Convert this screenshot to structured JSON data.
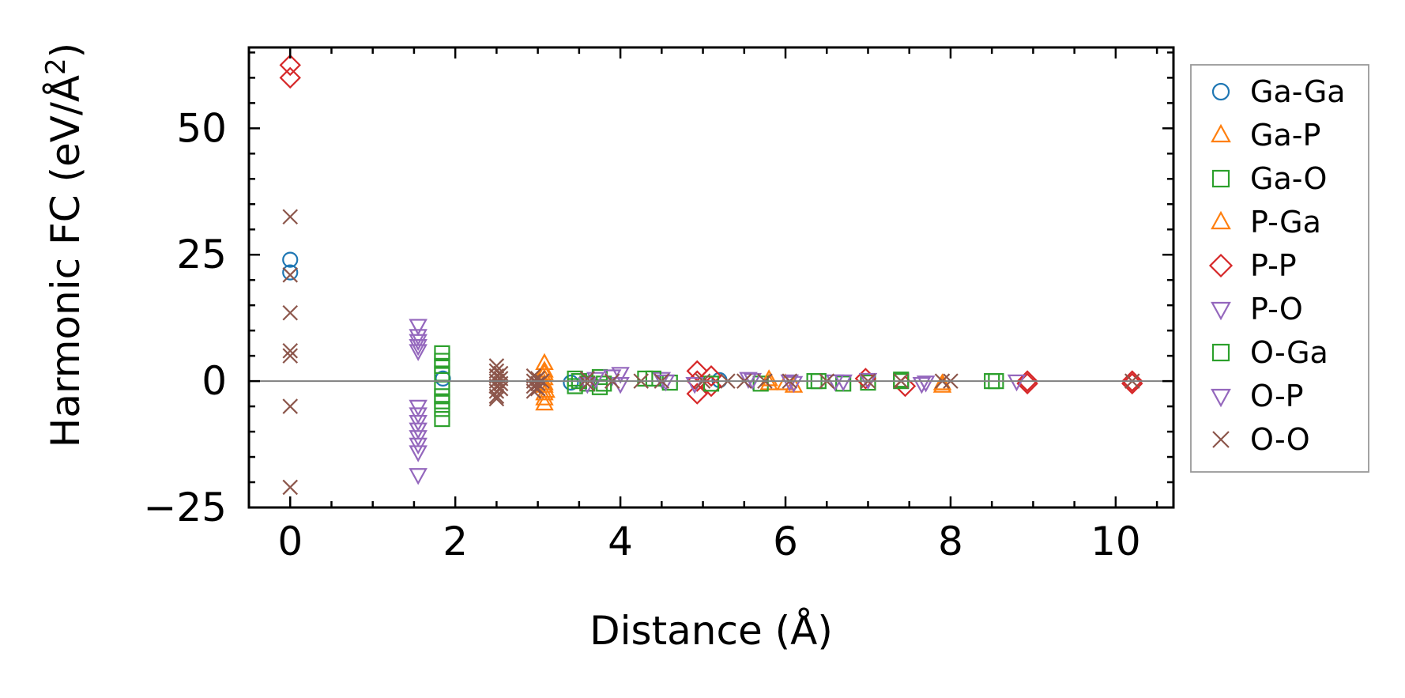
{
  "chart_data": {
    "type": "scatter",
    "title": "",
    "xlabel": "Distance (Å)",
    "ylabel_main": "Harmonic FC (eV/Å",
    "ylabel_sup": "2",
    "ylabel_tail": ")",
    "xlim": [
      -0.5,
      10.7
    ],
    "ylim": [
      -25,
      66
    ],
    "xticks": [
      0,
      2,
      4,
      6,
      8,
      10
    ],
    "xtick_labels": [
      "0",
      "2",
      "4",
      "6",
      "8",
      "10"
    ],
    "yticks": [
      -25,
      0,
      25,
      50
    ],
    "ytick_labels": [
      "−25",
      "0",
      "25",
      "50"
    ],
    "grid": false,
    "zero_line": true,
    "legend_position": "outside-right",
    "series": [
      {
        "name": "Ga-Ga",
        "marker": "circle",
        "color": "#1f77b4",
        "x": [
          0,
          0,
          1.85,
          3.4,
          5.2
        ],
        "y": [
          24,
          21.5,
          0.5,
          -0.3,
          0.2
        ]
      },
      {
        "name": "Ga-P",
        "marker": "triangle-up",
        "color": "#ff7f0e",
        "x": [
          3.08,
          3.08,
          3.08,
          3.08,
          3.08,
          3.08,
          3.08,
          5.8,
          6.1,
          7.9
        ],
        "y": [
          3.5,
          2,
          0.5,
          -1,
          -2.5,
          -3.5,
          -4.5,
          -0.5,
          -1,
          -1
        ]
      },
      {
        "name": "Ga-O",
        "marker": "square",
        "color": "#2ca02c",
        "x": [
          1.84,
          1.84,
          1.84,
          1.84,
          1.84,
          1.84,
          1.84,
          1.84,
          1.84,
          3.45,
          3.45,
          3.6,
          3.75,
          3.75,
          4.3,
          4.6,
          5.7,
          6.35,
          6.7,
          7.0,
          7.4,
          8.5
        ],
        "y": [
          5.5,
          4,
          3,
          1.5,
          -1.5,
          -3,
          -4,
          -5.5,
          -7.5,
          0.5,
          -1,
          -0.5,
          0.8,
          -1.2,
          0.5,
          -0.3,
          -0.5,
          0,
          -0.5,
          -0.3,
          0.3,
          0
        ],
        "filled_like": true
      },
      {
        "name": "P-Ga",
        "marker": "triangle-up",
        "color": "#ff7f0e",
        "x": [
          3.08,
          3.08,
          3.1,
          5.8,
          6.0,
          7.9
        ],
        "y": [
          1.5,
          -0.5,
          -2,
          0.3,
          -0.5,
          -0.5
        ]
      },
      {
        "name": "P-P",
        "marker": "diamond",
        "color": "#d62728",
        "x": [
          0,
          0,
          4.93,
          4.93,
          4.93,
          5.1,
          5.1,
          6.97,
          7.45,
          8.93,
          8.93,
          10.2,
          10.2
        ],
        "y": [
          62.5,
          60,
          2,
          0,
          -2.5,
          1,
          -1,
          0.5,
          -1,
          0,
          -0.5,
          0,
          -0.5
        ]
      },
      {
        "name": "P-O",
        "marker": "triangle-down",
        "color": "#9467bd",
        "x": [
          1.55,
          1.55,
          1.55,
          1.55,
          1.55,
          1.55,
          1.55,
          1.55,
          1.55,
          1.55,
          1.55,
          1.55,
          1.55,
          3.6,
          3.9,
          4.0,
          4.5,
          5.55,
          6.05,
          6.7,
          7.65,
          8.8
        ],
        "y": [
          11,
          9,
          8,
          7,
          6,
          -5,
          -6.5,
          -8,
          -9.5,
          -11,
          -12.5,
          -14,
          -18.5,
          -0.5,
          1,
          1.5,
          0.5,
          0.5,
          0,
          0,
          -0.5,
          0
        ]
      },
      {
        "name": "O-Ga",
        "marker": "square",
        "color": "#2ca02c",
        "x": [
          3.5,
          3.8,
          4.4,
          5.1,
          6.4,
          7.4,
          8.55
        ],
        "y": [
          0,
          -0.5,
          0.5,
          -0.5,
          0,
          0,
          0
        ]
      },
      {
        "name": "O-P",
        "marker": "triangle-down",
        "color": "#9467bd",
        "x": [
          3.7,
          4.0,
          4.55,
          4.9,
          5.6,
          6.1,
          6.6,
          7.0,
          7.7
        ],
        "y": [
          0.5,
          -0.5,
          0,
          -0.5,
          0.3,
          -0.3,
          0,
          0.3,
          -0.2
        ]
      },
      {
        "name": "O-O",
        "marker": "x",
        "color": "#8c564b",
        "x": [
          0,
          0,
          0,
          0,
          0,
          0,
          0,
          2.5,
          2.5,
          2.5,
          2.5,
          2.5,
          2.5,
          2.5,
          2.5,
          2.55,
          2.55,
          2.55,
          2.55,
          2.95,
          2.95,
          2.95,
          2.95,
          3.0,
          3.0,
          3.0,
          3.05,
          3.6,
          3.6,
          3.9,
          4.25,
          4.5,
          5.0,
          5.3,
          5.5,
          5.75,
          6.05,
          6.5,
          7.0,
          7.4,
          7.9,
          8.0,
          10.2
        ],
        "y": [
          32.5,
          21,
          13.5,
          6,
          5,
          -5,
          -21,
          3,
          2,
          1,
          0,
          -1,
          -2,
          -3,
          -3.5,
          1.5,
          0.5,
          -0.5,
          -1.5,
          1,
          0,
          -1,
          -2,
          0.5,
          -0.5,
          -1.5,
          0,
          0.5,
          -0.5,
          0,
          0,
          0,
          0,
          0,
          0,
          0,
          0,
          0,
          0,
          0,
          0,
          0,
          0
        ]
      }
    ]
  }
}
